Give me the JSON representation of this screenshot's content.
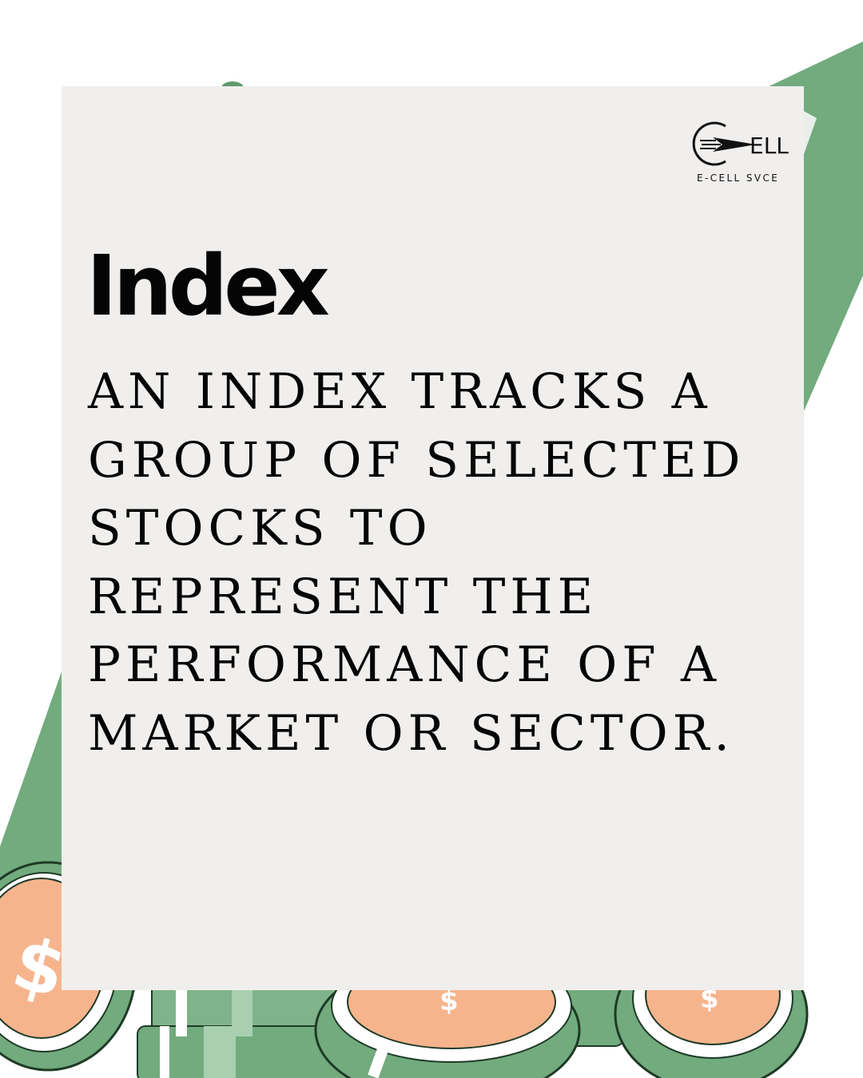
{
  "brand": {
    "logo_text": "ELL",
    "caption": "E-CELL SVCE"
  },
  "title": "Index",
  "body_lines": [
    "AN INDEX TRACKS A",
    "GROUP OF SELECTED",
    "STOCKS TO",
    "REPRESENT THE",
    "PERFORMANCE OF A",
    "MARKET OR SECTOR."
  ],
  "colors": {
    "background": "#ffffff",
    "card": "#f0efed",
    "green": "#72ab7e",
    "coin_face": "#f6b48d",
    "text": "#050505"
  },
  "icons": [
    "arrow-logo-icon",
    "dollar-coin-icon",
    "banknote-stack-icon"
  ]
}
